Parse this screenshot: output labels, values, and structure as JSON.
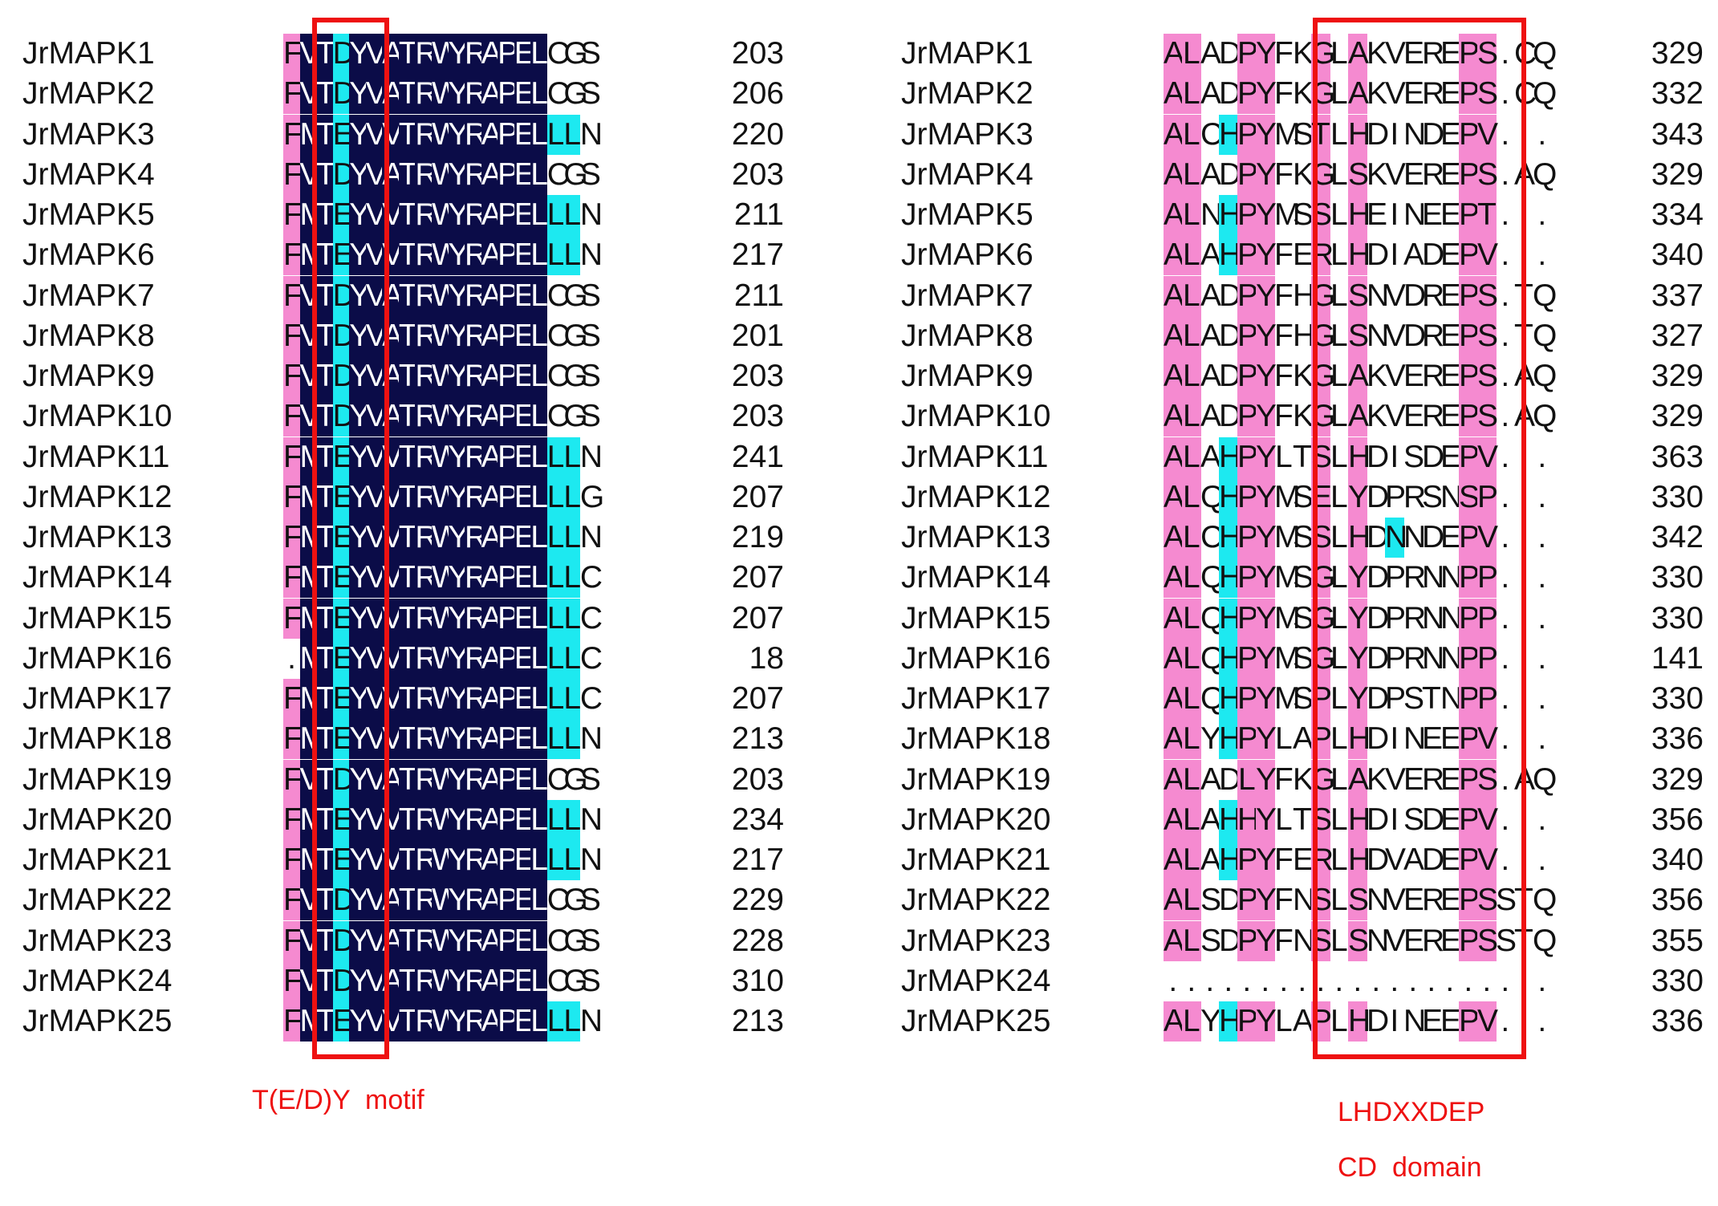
{
  "colors": {
    "dark": "#0b0c48",
    "cyan": "#1de9f0",
    "pink": "#f58ad0",
    "box": "#ee1111",
    "text": "#111111",
    "annotation": "#ee1111"
  },
  "left_block": {
    "names": [
      "JrMAPK1",
      "JrMAPK2",
      "JrMAPK3",
      "JrMAPK4",
      "JrMAPK5",
      "JrMAPK6",
      "JrMAPK7",
      "JrMAPK8",
      "JrMAPK9",
      "JrMAPK10",
      "JrMAPK11",
      "JrMAPK12",
      "JrMAPK13",
      "JrMAPK14",
      "JrMAPK15",
      "JrMAPK16",
      "JrMAPK17",
      "JrMAPK18",
      "JrMAPK19",
      "JrMAPK20",
      "JrMAPK21",
      "JrMAPK22",
      "JrMAPK23",
      "JrMAPK24",
      "JrMAPK25"
    ],
    "sequences": [
      "FVTDYVATRWYRAPELCGS",
      "FVTDYVATRWYRAPELCGS",
      "FMTEYVVTRWYRAPELLLN",
      "FVTDYVATRWYRAPELCGS",
      "FMTEYVVTRWYRAPELLLN",
      "FMTEYVVTRWYRAPELLLN",
      "FVTDYVATRWYRAPELCGS",
      "FVTDYVATRWYRAPELCGS",
      "FVTDYVATRWYRAPELCGS",
      "FVTDYVATRWYRAPELCGS",
      "FMTEYVVTRWYRAPELLLN",
      "FMTEYVVTRWYRAPELLLG",
      "FMTEYVVTRWYRAPELLLN",
      "FMTEYVVTRWYRAPELLLC",
      "FMTEYVVTRWYRAPELLLC",
      ".MTEYVVTRWYRAPELLLC",
      "FMTEYVVTRWYRAPELLLC",
      "FMTEYVVTRWYRAPELLLN",
      "FVTDYVATRWYRAPELCGS",
      "FMTEYVVTRWYRAPELLLN",
      "FMTEYVVTRWYRAPELLLN",
      "FVTDYVATRWYRAPELCGS",
      "FVTDYVATRWYRAPELCGS",
      "FVTDYVATRWYRAPELCGS",
      "FMTEYVVTRWYRAPELLLN"
    ],
    "numbers": [
      "203",
      "206",
      "220",
      "203",
      "211",
      "217",
      "211",
      "201",
      "203",
      "203",
      "241",
      "207",
      "219",
      "207",
      "207",
      "18",
      "207",
      "213",
      "203",
      "234",
      "217",
      "229",
      "228",
      "310",
      "213"
    ],
    "annotation": "T(E/D)Y  motif"
  },
  "right_block": {
    "names": [
      "JrMAPK1",
      "JrMAPK2",
      "JrMAPK3",
      "JrMAPK4",
      "JrMAPK5",
      "JrMAPK6",
      "JrMAPK7",
      "JrMAPK8",
      "JrMAPK9",
      "JrMAPK10",
      "JrMAPK11",
      "JrMAPK12",
      "JrMAPK13",
      "JrMAPK14",
      "JrMAPK15",
      "JrMAPK16",
      "JrMAPK17",
      "JrMAPK18",
      "JrMAPK19",
      "JrMAPK20",
      "JrMAPK21",
      "JrMAPK22",
      "JrMAPK23",
      "JrMAPK24",
      "JrMAPK25"
    ],
    "sequences": [
      "ALADPYFKGLAKVEREPS.CQ",
      "ALADPYFKGLAKVEREPS.CQ",
      "ALCHPYMSTLHDINDEPV...",
      "ALADPYFKGLSKVEREPS.AQ",
      "ALNHPYMSSLHEINEEPT...",
      "ALAHPYFERLHDIADEPV...",
      "ALADPYFHGLSNVDREPS.TQ",
      "ALADPYFHGLSNVDREPS.TQ",
      "ALADPYFKGLAKVEREPS.AQ",
      "ALADPYFKGLAKVEREPS.AQ",
      "ALAHPYLTSLHDISDEPV...",
      "ALQHPYMSELYDPRSNSP...",
      "ALCHPYMSSLHDNNDEPV...",
      "ALQHPYMSGLYDPRNNPP...",
      "ALQHPYMSGLYDPRNNPP...",
      "ALQHPYMSGLYDPRNNPP...",
      "ALQHPYMSPLYDPSTNPP...",
      "ALYHPYLAPLHDINEEPV...",
      "ALADLYFKGLAKVEREPS.AQ",
      "ALAHHYLTSLHDISDEPV...",
      "ALAHPYFERLHDVADEPV...",
      "ALSDPYFNSLSNVEREPSSTQ",
      "ALSDPYFNSLSNVEREPSSTQ",
      ".....................",
      "ALYHPYLAPLHDINEEPV..."
    ],
    "numbers": [
      "329",
      "332",
      "343",
      "329",
      "334",
      "340",
      "337",
      "327",
      "329",
      "329",
      "363",
      "330",
      "342",
      "330",
      "330",
      "141",
      "330",
      "336",
      "329",
      "356",
      "340",
      "356",
      "355",
      "330",
      "336"
    ],
    "annotation_line1": "LHDXXDEP",
    "annotation_line2": "CD  domain"
  }
}
